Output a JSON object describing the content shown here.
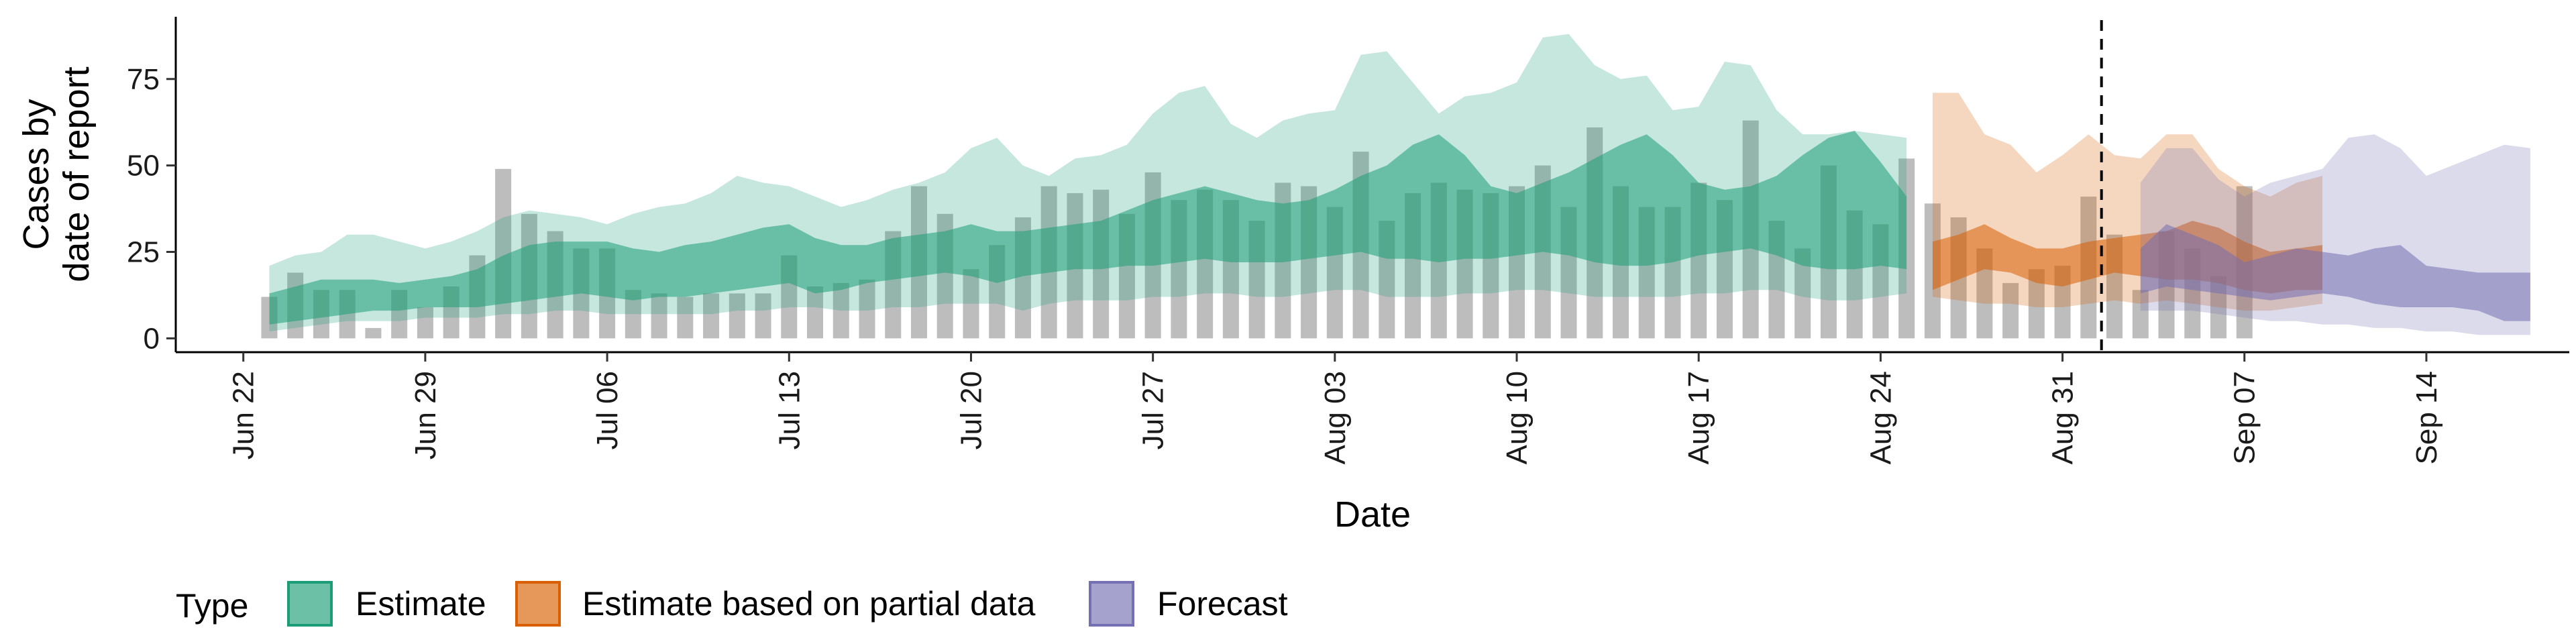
{
  "chart_data": {
    "type": "area",
    "xlabel": "Date",
    "ylabel": [
      "Cases by",
      "date of report"
    ],
    "x_ticks": [
      "Jun 22",
      "Jun 29",
      "Jul 06",
      "Jul 13",
      "Jul 20",
      "Jul 27",
      "Aug 03",
      "Aug 10",
      "Aug 17",
      "Aug 24",
      "Aug 31",
      "Sep 07",
      "Sep 14"
    ],
    "x_tick_days": [
      0,
      7,
      14,
      21,
      28,
      35,
      42,
      49,
      56,
      63,
      70,
      77,
      84
    ],
    "xlim_days": [
      -2.6,
      89.5
    ],
    "y_ticks": [
      0,
      25,
      50,
      75
    ],
    "ylim": [
      -4,
      93
    ],
    "x_start_label": "Jun 22",
    "vline_day": 71.5,
    "bars": {
      "start_day": 1,
      "color": "#bdbdbd",
      "values": [
        12,
        19,
        14,
        14,
        3,
        14,
        9,
        15,
        24,
        49,
        36,
        31,
        26,
        26,
        14,
        13,
        12,
        13,
        13,
        13,
        24,
        15,
        16,
        17,
        31,
        44,
        36,
        20,
        27,
        35,
        44,
        42,
        43,
        36,
        48,
        40,
        43,
        40,
        34,
        45,
        44,
        38,
        54,
        34,
        42,
        45,
        43,
        42,
        44,
        50,
        38,
        61,
        44,
        38,
        38,
        45,
        40,
        63,
        34,
        26,
        50,
        37,
        33,
        52,
        39,
        35,
        26,
        16,
        20,
        21,
        41,
        30,
        14,
        31,
        26,
        18,
        44
      ]
    },
    "series": [
      {
        "name": "Estimate",
        "color": "#1b9e77",
        "start_day": 1,
        "lower90": [
          2,
          3,
          4,
          5,
          5,
          5,
          6,
          6,
          6,
          7,
          7,
          8,
          8,
          7,
          7,
          7,
          7,
          7,
          8,
          8,
          9,
          9,
          8,
          8,
          9,
          9,
          10,
          10,
          10,
          8,
          10,
          11,
          11,
          11,
          12,
          12,
          13,
          13,
          12,
          12,
          13,
          14,
          14,
          12,
          12,
          12,
          13,
          13,
          14,
          14,
          13,
          12,
          12,
          12,
          12,
          13,
          13,
          14,
          14,
          12,
          11,
          11,
          12,
          13
        ],
        "lower50": [
          4,
          5,
          6,
          7,
          8,
          8,
          9,
          9,
          9,
          10,
          11,
          12,
          13,
          12,
          11,
          12,
          12,
          13,
          14,
          15,
          16,
          13,
          14,
          16,
          17,
          18,
          19,
          18,
          16,
          18,
          19,
          20,
          20,
          21,
          21,
          22,
          23,
          22,
          22,
          22,
          23,
          24,
          25,
          23,
          23,
          22,
          23,
          23,
          24,
          25,
          24,
          22,
          21,
          21,
          22,
          24,
          25,
          26,
          24,
          21,
          20,
          20,
          21,
          20
        ],
        "upper50": [
          13,
          15,
          17,
          17,
          17,
          16,
          17,
          18,
          20,
          24,
          27,
          28,
          28,
          28,
          26,
          25,
          27,
          28,
          30,
          32,
          33,
          29,
          27,
          27,
          29,
          30,
          31,
          33,
          31,
          31,
          32,
          33,
          34,
          37,
          40,
          42,
          44,
          42,
          40,
          39,
          40,
          43,
          47,
          50,
          56,
          59,
          53,
          44,
          42,
          45,
          48,
          52,
          56,
          59,
          53,
          45,
          43,
          44,
          47,
          53,
          58,
          60,
          51,
          41
        ],
        "upper90": [
          21,
          24,
          25,
          30,
          30,
          28,
          26,
          28,
          31,
          35,
          37,
          36,
          35,
          33,
          36,
          38,
          39,
          42,
          47,
          45,
          44,
          41,
          38,
          40,
          43,
          45,
          48,
          55,
          58,
          50,
          47,
          52,
          53,
          56,
          65,
          71,
          73,
          62,
          58,
          63,
          65,
          66,
          82,
          83,
          74,
          65,
          70,
          71,
          74,
          87,
          88,
          79,
          75,
          76,
          66,
          67,
          80,
          79,
          66,
          59,
          59,
          60,
          59,
          58
        ]
      },
      {
        "name": "Estimate based on partial data",
        "color": "#d95f02",
        "start_day": 65,
        "lower90": [
          12,
          11,
          10,
          10,
          9,
          9,
          10,
          11,
          10,
          11,
          10,
          9,
          8,
          8,
          9,
          10
        ],
        "lower50": [
          14,
          17,
          20,
          19,
          16,
          15,
          17,
          19,
          18,
          17,
          17,
          16,
          14,
          13,
          14,
          14
        ],
        "upper50": [
          28,
          30,
          33,
          29,
          26,
          26,
          28,
          29,
          30,
          31,
          34,
          32,
          28,
          25,
          26,
          27
        ],
        "upper90": [
          71,
          71,
          59,
          56,
          48,
          53,
          59,
          53,
          52,
          59,
          59,
          49,
          44,
          41,
          45,
          47
        ]
      },
      {
        "name": "Forecast",
        "color": "#7570b3",
        "start_day": 73,
        "lower90": [
          8,
          8,
          8,
          7,
          6,
          5,
          5,
          4,
          4,
          3,
          3,
          2,
          2,
          1,
          1,
          1
        ],
        "lower50": [
          13,
          15,
          14,
          13,
          12,
          11,
          12,
          13,
          12,
          10,
          9,
          9,
          9,
          8,
          5,
          5
        ],
        "upper50": [
          26,
          33,
          30,
          27,
          22,
          24,
          26,
          25,
          24,
          26,
          27,
          21,
          20,
          19,
          19,
          19
        ],
        "upper90": [
          45,
          55,
          55,
          46,
          41,
          45,
          47,
          49,
          58,
          59,
          55,
          47,
          50,
          53,
          56,
          55
        ]
      }
    ],
    "legend": {
      "title": "Type",
      "position": "bottom",
      "items": [
        "Estimate",
        "Estimate based on partial data",
        "Forecast"
      ]
    },
    "grid": false
  }
}
